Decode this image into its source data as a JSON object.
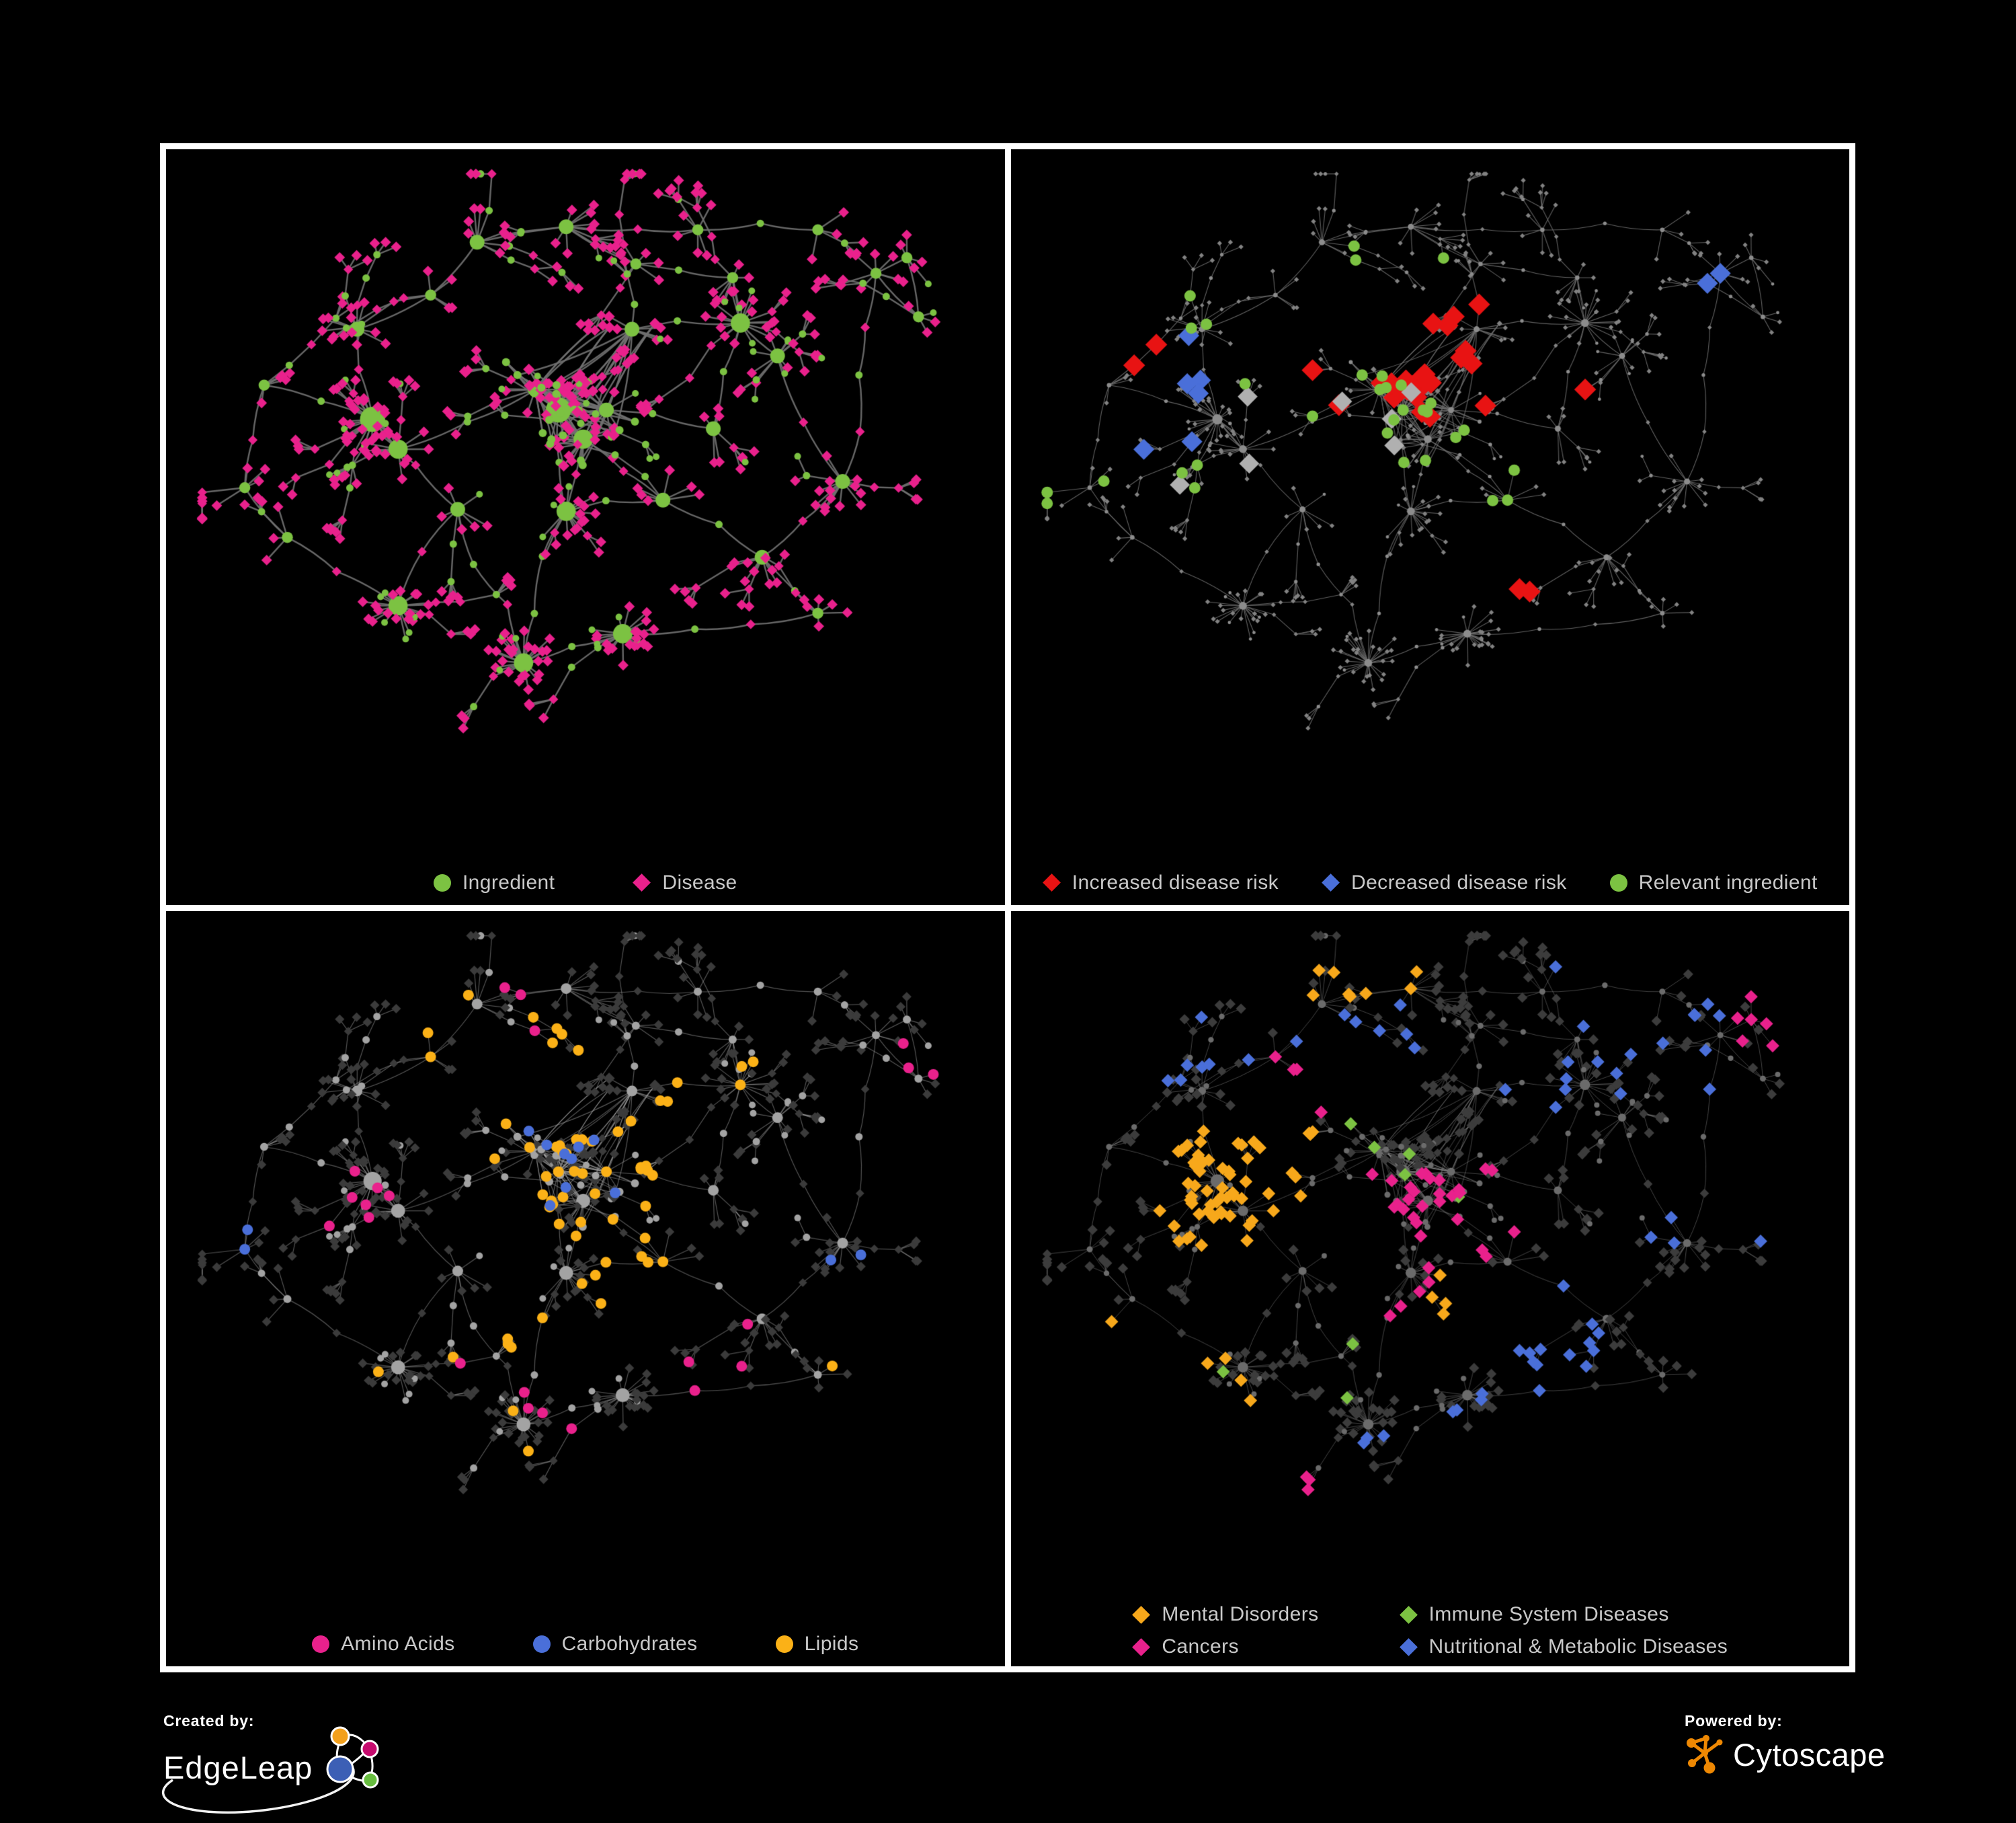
{
  "figure": {
    "background": "#000000",
    "panel_border_color": "#ffffff"
  },
  "panels": [
    {
      "id": "ingredient-disease",
      "legend_layout": "row",
      "legend": [
        {
          "label": "Ingredient",
          "shape": "circle",
          "color": "#7CC242"
        },
        {
          "label": "Disease",
          "shape": "diamond",
          "color": "#E9218C"
        }
      ],
      "style": {
        "edge": "rgba(112,112,112,0.92)",
        "edgeWidth": 2.4,
        "circle": "#7CC242",
        "diamond": "#E9218C",
        "hubR": 11,
        "chainR": 5.5,
        "leafR": 5,
        "webR": 6,
        "diamondR": 5.6
      },
      "highlights": []
    },
    {
      "id": "risk",
      "legend_layout": "row-tight",
      "legend": [
        {
          "label": "Increased disease risk",
          "shape": "diamond",
          "color": "#E81313"
        },
        {
          "label": "Decreased disease risk",
          "shape": "diamond",
          "color": "#4A6FD9"
        },
        {
          "label": "Relevant ingredient",
          "shape": "circle",
          "color": "#7CC242"
        }
      ],
      "style": {
        "edge": "rgba(108,108,108,0.9)",
        "edgeWidth": 1.1,
        "circle": "#8C8C8C",
        "diamond": "#828282",
        "hubR": 4.5,
        "chainR": 2.7,
        "leafR": 2.4,
        "webR": 3,
        "diamondR": 2.6
      },
      "highlights": [
        {
          "shape": "diamond",
          "color": "#E81313",
          "r": 11.5,
          "picks": [
            [
              22,
              0.33,
              0.6,
              0.17,
              0.44,
              "diamond"
            ],
            [
              3,
              0.07,
              0.16,
              0.22,
              0.32,
              "any"
            ],
            [
              1,
              0.7,
              0.78,
              0.34,
              0.42,
              "any"
            ],
            [
              2,
              0.58,
              0.67,
              0.62,
              0.72,
              "any"
            ],
            [
              2,
              0.52,
              0.58,
              0.2,
              0.3,
              "any"
            ]
          ]
        },
        {
          "shape": "diamond",
          "color": "#4A6FD9",
          "r": 11,
          "picks": [
            [
              6,
              0.1,
              0.21,
              0.24,
              0.46,
              "diamond"
            ],
            [
              2,
              0.84,
              0.9,
              0.14,
              0.2,
              "any"
            ]
          ]
        },
        {
          "shape": "diamond",
          "color": "#B0B0B0",
          "r": 10.5,
          "picks": [
            [
              7,
              0.15,
              0.55,
              0.18,
              0.55,
              "diamond"
            ]
          ]
        },
        {
          "shape": "circle",
          "color": "#7CC242",
          "r": 8.5,
          "picks": [
            [
              26,
              0.08,
              0.55,
              0.12,
              0.52,
              "circle"
            ],
            [
              3,
              0.58,
              0.66,
              0.48,
              0.58,
              "any"
            ],
            [
              3,
              0.0,
              0.08,
              0.3,
              0.55,
              "any"
            ]
          ]
        }
      ]
    },
    {
      "id": "macros",
      "legend_layout": "row",
      "legend": [
        {
          "label": "Amino Acids",
          "shape": "circle",
          "color": "#E9218C"
        },
        {
          "label": "Carbohydrates",
          "shape": "circle",
          "color": "#4A6FD9"
        },
        {
          "label": "Lipids",
          "shape": "circle",
          "color": "#FBB117"
        }
      ],
      "style": {
        "edge": "rgba(168,168,168,0.5)",
        "edgeWidth": 1.2,
        "circle": "#A3A3A3",
        "diamond": "#3B3B3B",
        "hubR": 8,
        "chainR": 5.5,
        "leafR": 5,
        "webR": 6,
        "diamondR": 5
      },
      "highlights": [
        {
          "shape": "circle",
          "color": "#FBB117",
          "r": 8,
          "picks": [
            [
              36,
              0.36,
              0.62,
              0.25,
              0.5,
              "any"
            ],
            [
              8,
              0.28,
              0.5,
              0.04,
              0.2,
              "any"
            ],
            [
              6,
              0.5,
              0.62,
              0.5,
              0.62,
              "any"
            ],
            [
              10,
              0.1,
              0.9,
              0.55,
              0.85,
              "any"
            ],
            [
              4,
              0.6,
              0.75,
              0.2,
              0.35,
              "any"
            ]
          ]
        },
        {
          "shape": "circle",
          "color": "#4A6FD9",
          "r": 8,
          "picks": [
            [
              9,
              0.4,
              0.56,
              0.28,
              0.44,
              "any"
            ],
            [
              2,
              0.0,
              0.1,
              0.38,
              0.52,
              "any"
            ],
            [
              2,
              0.75,
              0.9,
              0.5,
              0.62,
              "any"
            ]
          ]
        },
        {
          "shape": "circle",
          "color": "#E9218C",
          "r": 8,
          "picks": [
            [
              7,
              0.08,
              0.3,
              0.3,
              0.6,
              "any"
            ],
            [
              5,
              0.3,
              0.55,
              0.55,
              0.8,
              "any"
            ],
            [
              4,
              0.55,
              0.8,
              0.55,
              0.75,
              "any"
            ],
            [
              3,
              0.25,
              0.45,
              0.08,
              0.22,
              "any"
            ],
            [
              3,
              0.8,
              0.95,
              0.15,
              0.3,
              "any"
            ]
          ]
        }
      ]
    },
    {
      "id": "disease-classes",
      "legend_layout": "grid2",
      "legend": [
        {
          "label": "Mental Disorders",
          "shape": "diamond",
          "color": "#F7A81B"
        },
        {
          "label": "Immune System Diseases",
          "shape": "diamond",
          "color": "#7CC242"
        },
        {
          "label": "Cancers",
          "shape": "diamond",
          "color": "#E9218C"
        },
        {
          "label": "Nutritional & Metabolic Diseases",
          "shape": "diamond",
          "color": "#4A6FD9"
        }
      ],
      "style": {
        "edge": "rgba(148,148,148,0.45)",
        "edgeWidth": 1,
        "circle": "#6B6B6B",
        "diamond": "#3C3C3C",
        "hubR": 6,
        "chainR": 4.2,
        "leafR": 4,
        "webR": 4.5,
        "diamondR": 5.4
      },
      "highlights": [
        {
          "shape": "diamond",
          "color": "#F7A81B",
          "r": 7,
          "picks": [
            [
              58,
              0.13,
              0.35,
              0.3,
              0.55,
              "diamond"
            ],
            [
              8,
              0.3,
              0.5,
              0.03,
              0.12,
              "any"
            ],
            [
              4,
              0.5,
              0.6,
              0.55,
              0.65,
              "any"
            ],
            [
              5,
              0.05,
              0.3,
              0.6,
              0.8,
              "any"
            ]
          ]
        },
        {
          "shape": "diamond",
          "color": "#7CC242",
          "r": 7,
          "picks": [
            [
              5,
              0.35,
              0.6,
              0.25,
              0.45,
              "any"
            ],
            [
              3,
              0.2,
              0.45,
              0.6,
              0.85,
              "any"
            ]
          ]
        },
        {
          "shape": "diamond",
          "color": "#E9218C",
          "r": 7,
          "picks": [
            [
              32,
              0.38,
              0.62,
              0.38,
              0.62,
              "diamond"
            ],
            [
              6,
              0.88,
              0.99,
              0.1,
              0.2,
              "any"
            ],
            [
              4,
              0.3,
              0.45,
              0.2,
              0.3,
              "any"
            ],
            [
              4,
              0.15,
              0.35,
              0.75,
              0.9,
              "any"
            ]
          ]
        },
        {
          "shape": "diamond",
          "color": "#4A6FD9",
          "r": 7,
          "picks": [
            [
              18,
              0.55,
              0.95,
              0.03,
              0.3,
              "diamond"
            ],
            [
              12,
              0.58,
              0.72,
              0.55,
              0.7,
              "any"
            ],
            [
              8,
              0.25,
              0.5,
              0.1,
              0.25,
              "any"
            ],
            [
              6,
              0.05,
              0.25,
              0.05,
              0.25,
              "any"
            ],
            [
              8,
              0.3,
              0.7,
              0.7,
              0.9,
              "any"
            ],
            [
              4,
              0.75,
              0.95,
              0.35,
              0.5,
              "any"
            ]
          ]
        }
      ]
    }
  ],
  "network": {
    "seed": 1337,
    "hubs": [
      [
        0.225,
        0.4,
        3,
        20,
        5
      ],
      [
        0.258,
        0.448,
        2,
        12,
        3
      ],
      [
        0.465,
        0.385,
        3,
        14,
        3
      ],
      [
        0.497,
        0.432,
        2,
        10,
        2
      ],
      [
        0.435,
        0.352,
        1,
        8,
        2
      ],
      [
        0.527,
        0.385,
        1,
        7,
        2
      ],
      [
        0.7,
        0.245,
        2,
        16,
        3
      ],
      [
        0.748,
        0.298,
        1,
        9,
        2
      ],
      [
        0.475,
        0.548,
        2,
        15,
        2
      ],
      [
        0.258,
        0.7,
        2,
        22,
        2
      ],
      [
        0.42,
        0.792,
        2,
        28,
        1
      ],
      [
        0.548,
        0.745,
        2,
        24,
        1
      ],
      [
        0.832,
        0.5,
        1,
        13,
        2
      ],
      [
        0.728,
        0.622,
        1,
        7,
        2
      ],
      [
        0.8,
        0.712,
        0,
        6,
        1
      ],
      [
        0.36,
        0.115,
        1,
        6,
        3
      ],
      [
        0.475,
        0.09,
        1,
        8,
        2
      ],
      [
        0.565,
        0.15,
        0,
        5,
        2
      ],
      [
        0.3,
        0.2,
        0,
        4,
        2
      ],
      [
        0.645,
        0.095,
        0,
        5,
        1
      ],
      [
        0.69,
        0.172,
        0,
        8,
        1
      ],
      [
        0.875,
        0.165,
        0,
        6,
        1
      ],
      [
        0.93,
        0.235,
        0,
        4,
        1
      ],
      [
        0.8,
        0.095,
        0,
        3,
        1
      ],
      [
        0.085,
        0.345,
        0,
        5,
        1
      ],
      [
        0.06,
        0.51,
        0,
        4,
        1
      ],
      [
        0.115,
        0.59,
        0,
        3,
        1
      ],
      [
        0.335,
        0.545,
        1,
        6,
        1
      ],
      [
        0.6,
        0.53,
        1,
        6,
        1
      ],
      [
        0.665,
        0.415,
        1,
        5,
        1
      ],
      [
        0.915,
        0.14,
        0,
        5,
        0
      ],
      [
        0.205,
        0.255,
        1,
        7,
        2
      ],
      [
        0.56,
        0.255,
        1,
        6,
        1
      ]
    ],
    "backbone": [
      [
        0,
        1
      ],
      [
        0,
        31
      ],
      [
        0,
        24
      ],
      [
        0,
        27
      ],
      [
        1,
        4
      ],
      [
        31,
        18
      ],
      [
        18,
        15
      ],
      [
        15,
        16
      ],
      [
        16,
        17
      ],
      [
        16,
        19
      ],
      [
        19,
        23
      ],
      [
        17,
        20
      ],
      [
        20,
        6
      ],
      [
        24,
        25
      ],
      [
        25,
        26
      ],
      [
        27,
        9
      ],
      [
        27,
        10
      ],
      [
        10,
        11
      ],
      [
        8,
        10
      ],
      [
        3,
        8
      ],
      [
        2,
        3
      ],
      [
        2,
        4
      ],
      [
        2,
        5
      ],
      [
        3,
        5
      ],
      [
        4,
        5
      ],
      [
        32,
        2
      ],
      [
        32,
        6
      ],
      [
        5,
        29
      ],
      [
        29,
        6
      ],
      [
        6,
        7
      ],
      [
        7,
        12
      ],
      [
        28,
        3
      ],
      [
        8,
        28
      ],
      [
        28,
        13
      ],
      [
        13,
        12
      ],
      [
        13,
        14
      ],
      [
        11,
        14
      ],
      [
        12,
        21
      ],
      [
        21,
        22
      ],
      [
        21,
        30
      ],
      [
        22,
        30
      ],
      [
        2,
        8
      ],
      [
        9,
        26
      ]
    ],
    "web": {
      "hubs": [
        2,
        3,
        4,
        5,
        32
      ],
      "count": 28
    }
  },
  "footer": {
    "created_by_label": "Created by:",
    "edgeleap_name": "EdgeLeap",
    "powered_by_label": "Powered by:",
    "cytoscape_name": "Cytoscape",
    "logo_colors": {
      "edgeleap_orange": "#F3A01C",
      "edgeleap_magenta": "#C60B6E",
      "edgeleap_blue": "#3C5FB5",
      "edgeleap_green": "#67BD3F",
      "cytoscape_orange": "#EE8803"
    }
  }
}
